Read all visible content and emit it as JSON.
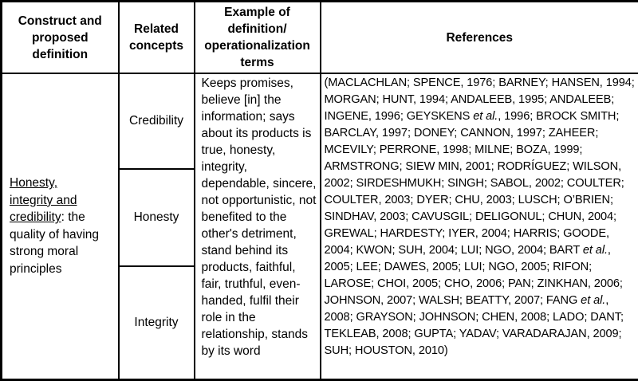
{
  "colors": {
    "border": "#000000",
    "text": "#000000",
    "background": "#ffffff"
  },
  "table": {
    "header": {
      "construct": "Construct and proposed definition",
      "related": "Related concepts",
      "example": "Example of definition/ operationalization terms",
      "references": "References"
    },
    "row": {
      "construct_definition": [
        {
          "text": "Honesty, integrity and credibility",
          "underline": true
        },
        {
          "text": ": the quality of having strong moral principles"
        }
      ],
      "related_concepts": [
        "Credibility",
        "Honesty",
        "Integrity"
      ],
      "example_terms": "Keeps promises, believe [in] the information; says about its products is true, honesty, integrity, dependable, sincere, not opportunistic, not benefited to the other's detriment, stand behind its products, faithful, fair, truthful, even-handed, fulfil their role in the relationship, stands by its word",
      "references": [
        {
          "text": "(MACLACHLAN; SPENCE, 1976; BARNEY; HANSEN, 1994; MORGAN; HUNT, 1994; ANDALEEB, 1995; ANDALEEB; INGENE, 1996; GEYSKENS "
        },
        {
          "text": "et al.",
          "italic": true
        },
        {
          "text": ", 1996; BROCK SMITH; BARCLAY, 1997; DONEY; CANNON, 1997; ZAHEER; MCEVILY; PERRONE, 1998; MILNE; BOZA, 1999; ARMSTRONG; SIEW MIN, 2001; RODRÍGUEZ; WILSON, 2002; SIRDESHMUKH; SINGH; SABOL, 2002; COULTER; COULTER, 2003; DYER; CHU, 2003; LUSCH; O’BRIEN; SINDHAV, 2003; CAVUSGIL; DELIGONUL; CHUN, 2004; GREWAL; HARDESTY; IYER, 2004; HARRIS; GOODE, 2004; KWON; SUH, 2004; LUI; NGO, 2004; BART "
        },
        {
          "text": "et al.",
          "italic": true
        },
        {
          "text": ", 2005; LEE; DAWES, 2005; LUI; NGO, 2005; RIFON; LAROSE; CHOI, 2005; CHO, 2006; PAN; ZINKHAN, 2006; JOHNSON, 2007; WALSH; BEATTY, 2007; FANG "
        },
        {
          "text": "et al.",
          "italic": true
        },
        {
          "text": ", 2008; GRAYSON; JOHNSON; CHEN, 2008; LADO; DANT; TEKLEAB, 2008; GUPTA; YADAV; VARADARAJAN, 2009; SUH; HOUSTON, 2010)"
        }
      ]
    }
  }
}
